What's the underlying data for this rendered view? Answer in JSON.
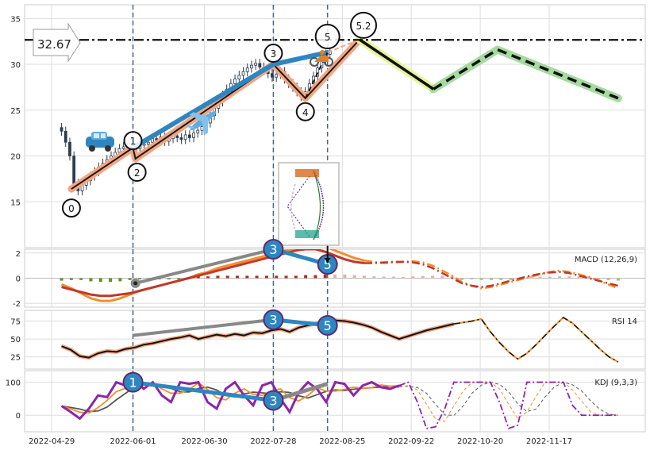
{
  "chart_data": {
    "type": "line",
    "x_ticks": [
      "2022-04-29",
      "2022-06-01",
      "2022-06-30",
      "2022-07-28",
      "2022-08-25",
      "2022-09-22",
      "2022-10-20",
      "2022-11-17"
    ],
    "vlines": [
      "2022-06-01",
      "2022-07-28",
      "2022-08-19"
    ],
    "price_panel": {
      "ylim": [
        10,
        36.5
      ],
      "yticks": [
        15,
        20,
        25,
        30,
        35
      ],
      "level_value": 32.67,
      "level_label": "32.67",
      "wave_points": [
        {
          "label": "0",
          "x": "2022-05-07",
          "y": 16.4
        },
        {
          "label": "1",
          "x": "2022-06-01",
          "y": 20.9
        },
        {
          "label": "2",
          "x": "2022-06-02",
          "y": 19.7
        },
        {
          "label": "3",
          "x": "2022-07-28",
          "y": 30.0
        },
        {
          "label": "4",
          "x": "2022-08-10",
          "y": 26.3
        },
        {
          "label": "5",
          "x": "2022-08-19",
          "y": 31.3
        },
        {
          "label": "5.2",
          "x": "2022-09-01",
          "y": 32.7
        }
      ],
      "projection": [
        {
          "x": "2022-09-01",
          "y": 32.7
        },
        {
          "x": "2022-10-01",
          "y": 27.3
        },
        {
          "x": "2022-10-27",
          "y": 31.6
        },
        {
          "x": "2022-12-15",
          "y": 26.3
        }
      ],
      "candles_close": [
        22.7,
        21.5,
        20.0,
        17.0,
        16.2,
        16.8,
        17.3,
        17.8,
        18.3,
        18.8,
        19.2,
        19.6,
        20.0,
        20.4,
        20.8,
        21.0,
        20.6,
        20.3,
        20.8,
        21.2,
        21.3,
        21.5,
        21.9,
        21.7,
        22.1,
        21.6,
        21.9,
        22.2,
        22.0,
        21.8,
        22.3,
        22.0,
        22.5,
        22.8,
        23.2,
        23.6,
        24.4,
        25.2,
        25.9,
        26.6,
        27.3,
        27.9,
        28.4,
        28.8,
        29.2,
        29.6,
        29.9,
        30.1,
        29.7,
        29.4,
        29.0,
        28.6,
        28.9,
        29.2,
        28.4,
        27.9,
        27.5,
        27.0,
        26.5,
        27.0,
        27.9,
        28.7,
        29.6,
        30.4,
        31.1,
        31.4
      ]
    },
    "macd_panel": {
      "label": "MACD (12,26,9)",
      "ylim": [
        -2.3,
        2.3
      ],
      "yticks": [
        -2,
        0,
        2
      ],
      "dif": [
        -0.5,
        -0.8,
        -1.2,
        -1.6,
        -1.8,
        -1.8,
        -1.6,
        -1.3,
        -1.0,
        -0.8,
        -0.6,
        -0.4,
        -0.2,
        0.0,
        0.3,
        0.5,
        0.8,
        1.0,
        1.2,
        1.4,
        1.6,
        1.8,
        2.0,
        2.2,
        2.4,
        2.6,
        2.6,
        2.5,
        2.2,
        1.9,
        1.6,
        1.4,
        1.3,
        1.2,
        1.25,
        1.3,
        1.35,
        1.25,
        1.0,
        0.6,
        0.2,
        -0.3,
        -0.6,
        -0.8,
        -0.7,
        -0.5,
        -0.3,
        -0.1,
        0.1,
        0.3,
        0.5,
        0.6,
        0.5,
        0.3,
        0.1,
        -0.2,
        -0.5,
        -0.8
      ],
      "dea": [
        -0.7,
        -0.9,
        -1.1,
        -1.3,
        -1.4,
        -1.4,
        -1.3,
        -1.2,
        -1.0,
        -0.8,
        -0.6,
        -0.4,
        -0.2,
        0.0,
        0.2,
        0.4,
        0.6,
        0.8,
        1.0,
        1.2,
        1.4,
        1.6,
        1.8,
        2.0,
        2.2,
        2.3,
        2.3,
        2.1,
        1.8,
        1.5,
        1.3,
        1.2,
        1.2,
        1.25,
        1.3,
        1.3,
        1.25,
        1.1,
        0.8,
        0.4,
        0.0,
        -0.4,
        -0.6,
        -0.7,
        -0.6,
        -0.4,
        -0.2,
        0.0,
        0.2,
        0.35,
        0.45,
        0.5,
        0.4,
        0.2,
        0.0,
        -0.2,
        -0.4,
        -0.6
      ],
      "divergence": [
        {
          "label": "3",
          "x": "2022-07-28",
          "y": 2.3
        },
        {
          "label": "5",
          "x": "2022-08-19",
          "y": 1.1
        }
      ]
    },
    "rsi_panel": {
      "label": "RSI 14",
      "ylim": [
        8,
        90
      ],
      "yticks": [
        25,
        50,
        75
      ],
      "values": [
        40,
        35,
        26,
        24,
        30,
        33,
        32,
        36,
        38,
        42,
        44,
        47,
        50,
        52,
        55,
        50,
        53,
        56,
        54,
        57,
        55,
        59,
        58,
        62,
        64,
        60,
        66,
        69,
        72,
        74,
        76,
        75,
        73,
        70,
        66,
        60,
        55,
        50,
        54,
        58,
        62,
        65,
        68,
        71,
        73,
        75,
        78,
        60,
        45,
        32,
        22,
        30,
        42,
        55,
        68,
        80,
        72,
        60,
        48,
        36,
        25,
        18
      ],
      "divergence": [
        {
          "label": "3",
          "x": "2022-07-28",
          "y": 77
        },
        {
          "label": "5",
          "x": "2022-08-19",
          "y": 69
        }
      ]
    },
    "kdj_panel": {
      "label": "KDJ (9,3,3)",
      "ylim": [
        -50,
        135
      ],
      "yticks": [
        0,
        100
      ],
      "j": [
        28,
        10,
        -10,
        20,
        60,
        55,
        100,
        90,
        110,
        80,
        100,
        60,
        40,
        100,
        95,
        100,
        40,
        20,
        80,
        100,
        60,
        30,
        90,
        100,
        50,
        10,
        70,
        100,
        80,
        40,
        100,
        95,
        60,
        90,
        100,
        85,
        80,
        90,
        100,
        40,
        -40,
        -35,
        20,
        100,
        100,
        100,
        100,
        100,
        40,
        -40,
        -30,
        100,
        100,
        100,
        100,
        100,
        30,
        0,
        0,
        0,
        0,
        0
      ],
      "divergence": [
        {
          "label": "1",
          "x": "2022-06-01",
          "y": 100
        },
        {
          "label": "3",
          "x": "2022-07-28",
          "y": 45
        }
      ]
    }
  }
}
